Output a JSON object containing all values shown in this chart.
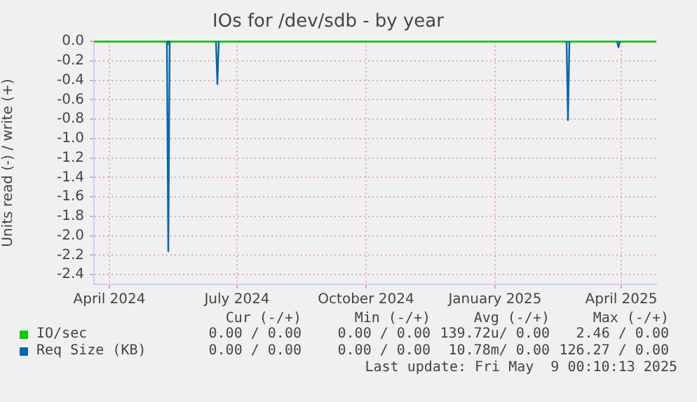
{
  "chart_data": {
    "type": "line",
    "title": "IOs for /dev/sdb - by year",
    "ylabel": "Units read (-) / write (+)",
    "series": [
      {
        "name": "IO/sec",
        "color": "#00cc00",
        "x": [
          "2024-03-21",
          "2024-05-12",
          "2024-05-13",
          "2024-05-14",
          "2025-04-26"
        ],
        "values": [
          0,
          0,
          -0.03,
          0,
          0
        ]
      },
      {
        "name": "Req Size (KB)",
        "color": "#0066b3",
        "x": [
          "2024-05-12",
          "2024-05-13",
          "2024-05-14",
          "2024-06-01",
          "2024-06-16",
          "2024-06-17",
          "2024-06-18",
          "2024-10-01",
          "2025-02-21",
          "2025-02-22",
          "2025-02-23",
          "2025-03-15",
          "2025-03-29",
          "2025-03-30",
          "2025-03-31"
        ],
        "values": [
          0,
          -2.16,
          0,
          null,
          0,
          -0.44,
          0,
          null,
          0,
          -0.81,
          0,
          null,
          0,
          -0.06,
          0
        ]
      }
    ],
    "xlim": [
      "2024-03-21",
      "2025-04-26"
    ],
    "xticks": [
      {
        "value": "2024-04-01",
        "label": "April 2024"
      },
      {
        "value": "2024-07-01",
        "label": "July 2024"
      },
      {
        "value": "2024-10-01",
        "label": "October 2024"
      },
      {
        "value": "2025-01-01",
        "label": "January 2025"
      },
      {
        "value": "2025-04-01",
        "label": "April 2025"
      }
    ],
    "ylim": [
      -2.5,
      0
    ],
    "yticks": [
      {
        "value": 0,
        "label": "0.0"
      },
      {
        "value": -0.2,
        "label": "-0.2"
      },
      {
        "value": -0.4,
        "label": "-0.4"
      },
      {
        "value": -0.6,
        "label": "-0.6"
      },
      {
        "value": -0.8,
        "label": "-0.8"
      },
      {
        "value": -1,
        "label": "-1.0"
      },
      {
        "value": -1.2,
        "label": "-1.2"
      },
      {
        "value": -1.4,
        "label": "-1.4"
      },
      {
        "value": -1.6,
        "label": "-1.6"
      },
      {
        "value": -1.8,
        "label": "-1.8"
      },
      {
        "value": -2,
        "label": "-2.0"
      },
      {
        "value": -2.2,
        "label": "-2.2"
      },
      {
        "value": -2.4,
        "label": "-2.4"
      }
    ],
    "grid": true,
    "legend": "bottom",
    "marker": "none",
    "line_style": "solid",
    "annotations": [
      "Cur (-/+)",
      "Min (-/+)",
      "Avg (-/+)",
      "Max (-/+)",
      "0.00 / 0.00",
      "0.00 / 0.00",
      "139.72u/ 0.00",
      "2.46 / 0.00",
      "0.00 / 0.00",
      "0.00 / 0.00",
      "10.78m/ 0.00",
      "126.27 / 0.00",
      "Last update: Fri May  9 00:10:13 2025"
    ]
  }
}
